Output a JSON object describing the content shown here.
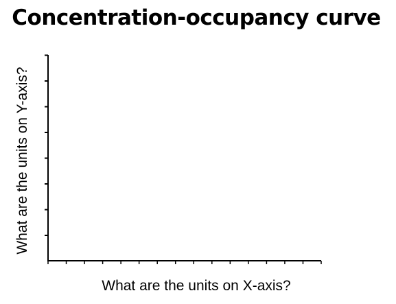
{
  "chart_data": {
    "type": "line",
    "title": "Concentration-occupancy curve",
    "xlabel": "What are the units on X-axis?",
    "ylabel": "What are the units on Y-axis?",
    "series": [],
    "grid": false,
    "legend": "none",
    "x_tick_count": 15,
    "y_tick_count": 8,
    "x_tick_labels": [],
    "y_tick_labels": []
  },
  "colors": {
    "axis": "#000000",
    "background": "#ffffff"
  }
}
